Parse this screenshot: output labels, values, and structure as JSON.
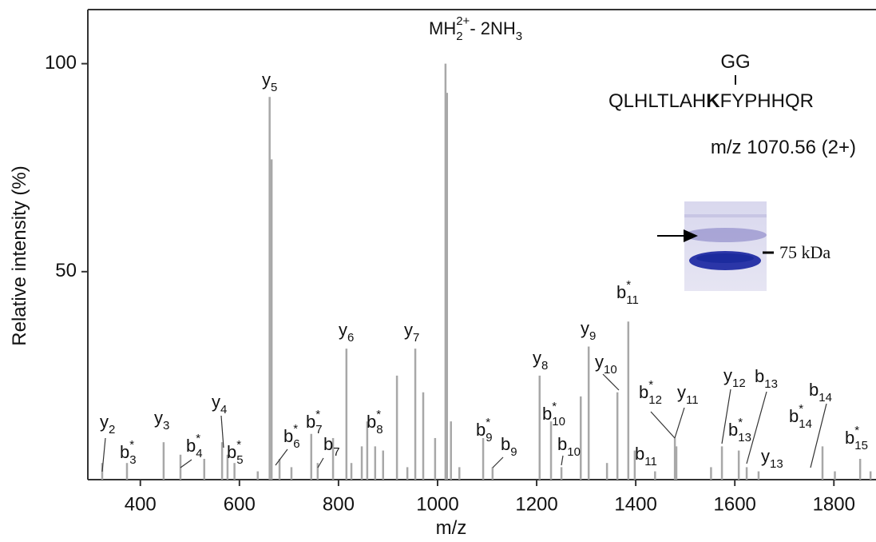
{
  "chart_data": {
    "type": "spectrum",
    "x_label": "m/z",
    "y_label": "Relative intensity (%)",
    "x": [
      323,
      373,
      447,
      481,
      529,
      565,
      576,
      590,
      637,
      661,
      665,
      681,
      705,
      745,
      758,
      789,
      816,
      826,
      847,
      858,
      874,
      890,
      918,
      939,
      955,
      971,
      995,
      1016,
      1019,
      1027,
      1044,
      1092,
      1111,
      1206,
      1229,
      1250,
      1289,
      1305,
      1342,
      1363,
      1385,
      1398,
      1439,
      1479,
      1482,
      1552,
      1574,
      1608,
      1624,
      1648,
      1777,
      1802,
      1853,
      1874
    ],
    "values": [
      4,
      4,
      9,
      6,
      5,
      9,
      6,
      4,
      2,
      92,
      77,
      5,
      3,
      11,
      4,
      10,
      31.5,
      4,
      8,
      14,
      8,
      7,
      25,
      3,
      31.5,
      21,
      10,
      100,
      93,
      14,
      3,
      10,
      3,
      25,
      14,
      3,
      20,
      32,
      4,
      21,
      38,
      7,
      2,
      10,
      8,
      3,
      8,
      7,
      3,
      2,
      8,
      2,
      5,
      2
    ],
    "color": "#a8a8a8",
    "xlim": [
      294,
      1885
    ],
    "ylim": [
      0,
      113
    ],
    "xticks": [
      400,
      600,
      800,
      1000,
      1200,
      1400,
      1600,
      1800
    ],
    "yticks": [
      50,
      100
    ],
    "annotations": [
      {
        "parts": [
          {
            "text": "y"
          },
          {
            "sub": "2"
          }
        ]
      },
      {
        "parts": [
          {
            "text": "b"
          },
          {
            "sup": "*"
          },
          {
            "sub": "3"
          }
        ]
      },
      {
        "parts": [
          {
            "text": "y"
          },
          {
            "sub": "3"
          }
        ]
      },
      {
        "parts": [
          {
            "text": "b"
          },
          {
            "sup": "*"
          },
          {
            "sub": "4"
          }
        ]
      },
      {
        "parts": [
          {
            "text": "y"
          },
          {
            "sub": "4"
          }
        ]
      },
      {
        "parts": [
          {
            "text": "b"
          },
          {
            "sup": "*"
          },
          {
            "sub": "5"
          }
        ]
      },
      {
        "parts": [
          {
            "text": "y"
          },
          {
            "sub": "5"
          }
        ]
      },
      {
        "parts": [
          {
            "text": "b"
          },
          {
            "sup": "*"
          },
          {
            "sub": "6"
          }
        ]
      },
      {
        "parts": [
          {
            "text": "b"
          },
          {
            "sup": "*"
          },
          {
            "sub": "7"
          }
        ]
      },
      {
        "parts": [
          {
            "text": "b"
          },
          {
            "sub": "7"
          }
        ]
      },
      {
        "parts": [
          {
            "text": "b"
          },
          {
            "sup": "*"
          },
          {
            "sub": "8"
          }
        ]
      },
      {
        "parts": [
          {
            "text": "y"
          },
          {
            "sub": "6"
          }
        ]
      },
      {
        "parts": [
          {
            "text": "y"
          },
          {
            "sub": "7"
          }
        ]
      },
      {
        "parts": [
          {
            "text": "MH"
          },
          {
            "sub": "2"
          },
          {
            "sup": "2+"
          },
          {
            "text": "- 2NH"
          },
          {
            "sub": "3"
          }
        ]
      },
      {
        "parts": [
          {
            "text": "b"
          },
          {
            "sup": "*"
          },
          {
            "sub": "9"
          }
        ]
      },
      {
        "parts": [
          {
            "text": "b"
          },
          {
            "sub": "9"
          }
        ]
      },
      {
        "parts": [
          {
            "text": "y"
          },
          {
            "sub": "8"
          }
        ]
      },
      {
        "parts": [
          {
            "text": "b"
          },
          {
            "sup": "*"
          },
          {
            "sub": "10"
          }
        ]
      },
      {
        "parts": [
          {
            "text": "b"
          },
          {
            "sub": "10"
          }
        ]
      },
      {
        "parts": [
          {
            "text": "y"
          },
          {
            "sub": "9"
          }
        ]
      },
      {
        "parts": [
          {
            "text": "y"
          },
          {
            "sub": "10"
          }
        ]
      },
      {
        "parts": [
          {
            "text": "b"
          },
          {
            "sup": "*"
          },
          {
            "sub": "11"
          }
        ]
      },
      {
        "parts": [
          {
            "text": "b"
          },
          {
            "sub": "11"
          }
        ]
      },
      {
        "parts": [
          {
            "text": "b"
          },
          {
            "sup": "*"
          },
          {
            "sub": "12"
          }
        ]
      },
      {
        "parts": [
          {
            "text": "y"
          },
          {
            "sub": "11"
          }
        ]
      },
      {
        "parts": [
          {
            "text": "y"
          },
          {
            "sub": "12"
          }
        ]
      },
      {
        "parts": [
          {
            "text": "b"
          },
          {
            "sup": "*"
          },
          {
            "sub": "13"
          }
        ]
      },
      {
        "parts": [
          {
            "text": "b"
          },
          {
            "sub": "13"
          }
        ]
      },
      {
        "parts": [
          {
            "text": "y"
          },
          {
            "sub": "13"
          }
        ]
      },
      {
        "parts": [
          {
            "text": "b"
          },
          {
            "sup": "*"
          },
          {
            "sub": "14"
          }
        ]
      },
      {
        "parts": [
          {
            "text": "b"
          },
          {
            "sub": "14"
          }
        ]
      },
      {
        "parts": [
          {
            "text": "b"
          },
          {
            "sup": "*"
          },
          {
            "sub": "15"
          }
        ]
      }
    ]
  },
  "inset": {
    "modification": "GG",
    "sequence": [
      {
        "text": "QLHLTLAH"
      },
      {
        "bold": "K"
      },
      {
        "text": "FYPHHQR"
      }
    ],
    "precursor": "m/z 1070.56 (2+)",
    "gel_label": "75 kDa"
  }
}
